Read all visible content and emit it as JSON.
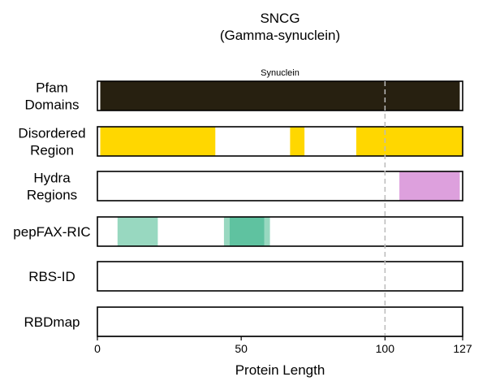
{
  "chart_data": {
    "type": "track",
    "title": [
      "SNCG",
      "(Gamma-synuclein)"
    ],
    "xlabel": "Protein Length",
    "xlim": [
      0,
      127
    ],
    "xticks": [
      0,
      50,
      100,
      127
    ],
    "reference_line_x": 100,
    "tracks": [
      {
        "label": [
          "Pfam",
          "Domains"
        ],
        "segments": [
          {
            "start": 1,
            "end": 126,
            "color": "#272010",
            "name": "Synuclein"
          }
        ]
      },
      {
        "label": [
          "Disordered",
          "Region"
        ],
        "segments": [
          {
            "start": 1,
            "end": 41,
            "color": "#FFD700"
          },
          {
            "start": 67,
            "end": 72,
            "color": "#FFD700"
          },
          {
            "start": 90,
            "end": 127,
            "color": "#FFD700"
          }
        ]
      },
      {
        "label": [
          "Hydra",
          "Regions"
        ],
        "segments": [
          {
            "start": 105,
            "end": 126,
            "color": "#DDA0DD"
          }
        ]
      },
      {
        "label": [
          "pepFAX-RIC"
        ],
        "segments": [
          {
            "start": 7,
            "end": 21,
            "color": "#98D8C0"
          },
          {
            "start": 44,
            "end": 60,
            "color": "#98D8C0"
          },
          {
            "start": 46,
            "end": 58,
            "color": "#5FC2A0"
          }
        ]
      },
      {
        "label": [
          "RBS-ID"
        ],
        "segments": []
      },
      {
        "label": [
          "RBDmap"
        ],
        "segments": []
      }
    ]
  }
}
